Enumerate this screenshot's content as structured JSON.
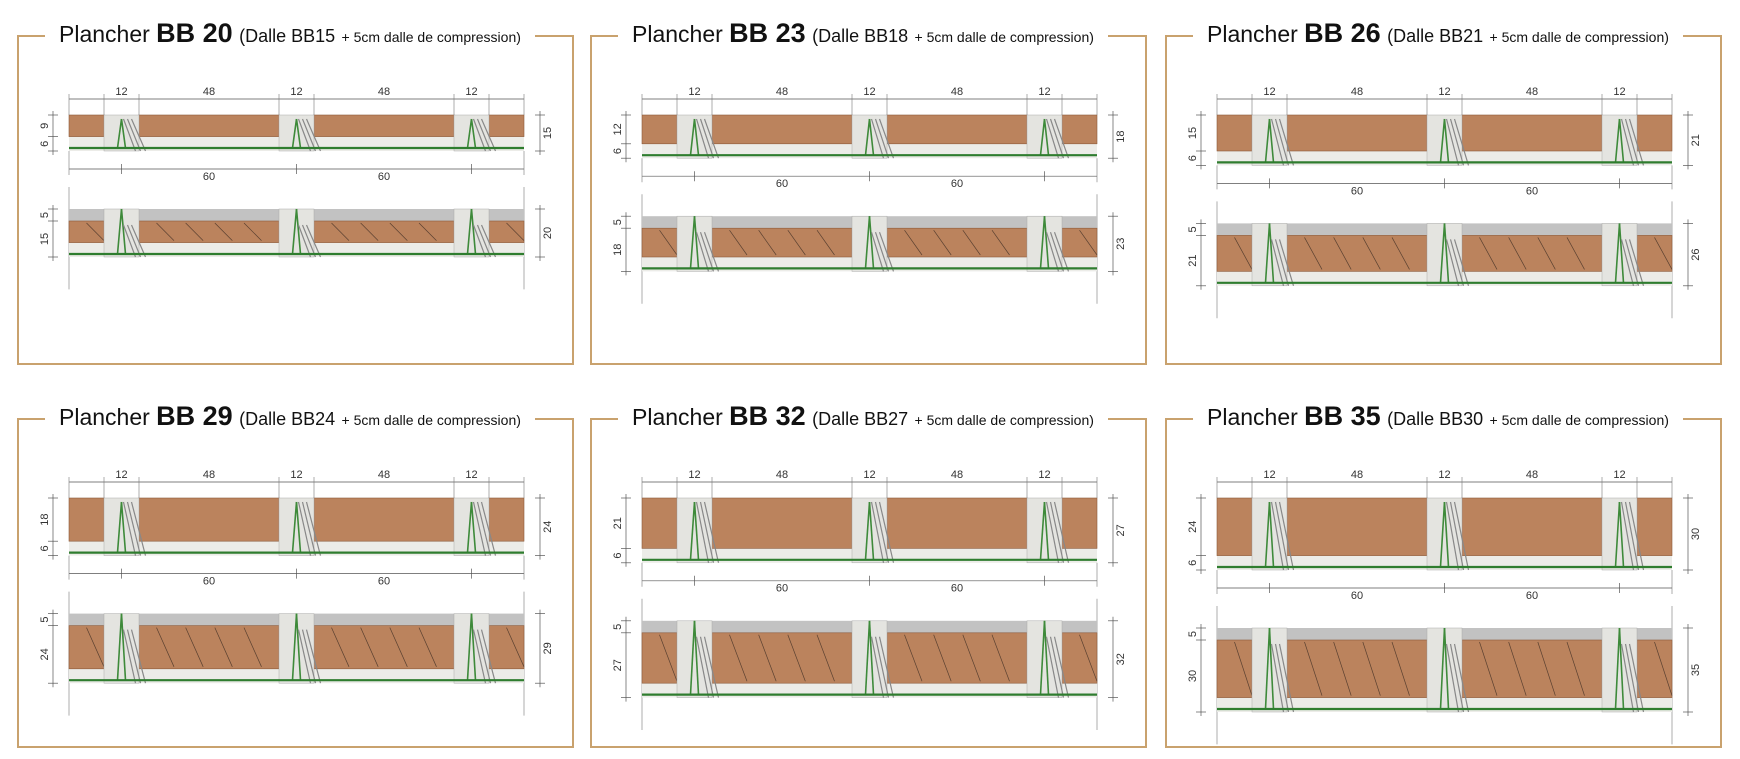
{
  "panels": [
    {
      "title": {
        "prefix": "Plancher",
        "code": "BB 20",
        "dalle": "(Dalle BB15",
        "note": "+ 5cm dalle de compression)"
      },
      "top": {
        "spans": [
          "12",
          "48",
          "12",
          "48",
          "12"
        ],
        "pitch": [
          "60",
          "60"
        ],
        "left": [
          "9",
          "6"
        ],
        "right": "15"
      },
      "bottom": {
        "left": [
          "5",
          "15"
        ],
        "right": "20"
      }
    },
    {
      "title": {
        "prefix": "Plancher",
        "code": "BB 23",
        "dalle": "(Dalle BB18",
        "note": "+ 5cm dalle de compression)"
      },
      "top": {
        "spans": [
          "12",
          "48",
          "12",
          "48",
          "12"
        ],
        "pitch": [
          "60",
          "60"
        ],
        "left": [
          "12",
          "6"
        ],
        "right": "18"
      },
      "bottom": {
        "left": [
          "5",
          "18"
        ],
        "right": "23"
      }
    },
    {
      "title": {
        "prefix": "Plancher",
        "code": "BB 26",
        "dalle": "(Dalle BB21",
        "note": "+ 5cm dalle de compression)"
      },
      "top": {
        "spans": [
          "12",
          "48",
          "12",
          "48",
          "12"
        ],
        "pitch": [
          "60",
          "60"
        ],
        "left": [
          "15",
          "6"
        ],
        "right": "21"
      },
      "bottom": {
        "left": [
          "5",
          "21"
        ],
        "right": "26"
      }
    },
    {
      "title": {
        "prefix": "Plancher",
        "code": "BB 29",
        "dalle": "(Dalle BB24",
        "note": "+ 5cm dalle de compression)"
      },
      "top": {
        "spans": [
          "12",
          "48",
          "12",
          "48",
          "12"
        ],
        "pitch": [
          "60",
          "60"
        ],
        "left": [
          "18",
          "6"
        ],
        "right": "24"
      },
      "bottom": {
        "left": [
          "5",
          "24"
        ],
        "right": "29"
      }
    },
    {
      "title": {
        "prefix": "Plancher",
        "code": "BB 32",
        "dalle": "(Dalle BB27",
        "note": "+ 5cm dalle de compression)"
      },
      "top": {
        "spans": [
          "12",
          "48",
          "12",
          "48",
          "12"
        ],
        "pitch": [
          "60",
          "60"
        ],
        "left": [
          "21",
          "6"
        ],
        "right": "27"
      },
      "bottom": {
        "left": [
          "5",
          "27"
        ],
        "right": "32"
      }
    },
    {
      "title": {
        "prefix": "Plancher",
        "code": "BB 35",
        "dalle": "(Dalle BB30",
        "note": "+ 5cm dalle de compression)"
      },
      "top": {
        "spans": [
          "12",
          "48",
          "12",
          "48",
          "12"
        ],
        "pitch": [
          "60",
          "60"
        ],
        "left": [
          "24",
          "6"
        ],
        "right": "30"
      },
      "bottom": {
        "left": [
          "5",
          "30"
        ],
        "right": "35"
      }
    }
  ]
}
